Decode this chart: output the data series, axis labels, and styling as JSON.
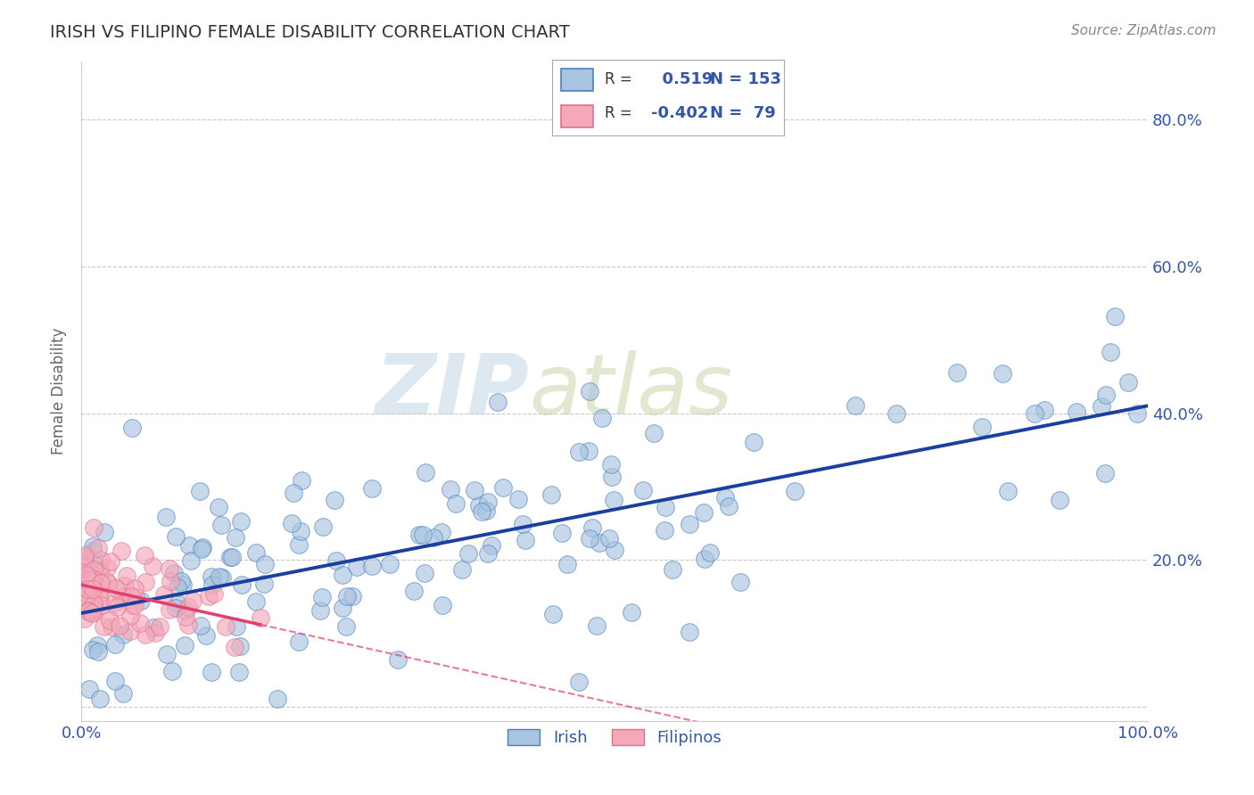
{
  "title": "IRISH VS FILIPINO FEMALE DISABILITY CORRELATION CHART",
  "source_text": "Source: ZipAtlas.com",
  "ylabel": "Female Disability",
  "xlim": [
    0.0,
    1.0
  ],
  "ylim": [
    -0.02,
    0.88
  ],
  "xticks": [
    0.0,
    0.2,
    0.4,
    0.6,
    0.8,
    1.0
  ],
  "xtick_labels": [
    "0.0%",
    "",
    "",
    "",
    "",
    "100.0%"
  ],
  "yticks": [
    0.0,
    0.2,
    0.4,
    0.6,
    0.8
  ],
  "ytick_labels_right": [
    "",
    "20.0%",
    "40.0%",
    "60.0%",
    "80.0%"
  ],
  "irish_R": 0.519,
  "irish_N": 153,
  "filipino_R": -0.402,
  "filipino_N": 79,
  "irish_color": "#a8c4e0",
  "irish_edge_color": "#4a80c0",
  "irish_line_color": "#1a3fa0",
  "filipino_color": "#f4a8b8",
  "filipino_edge_color": "#e07090",
  "filipino_line_color": "#e04070",
  "title_color": "#333333",
  "axis_label_color": "#3355aa",
  "watermark_color": "#dde8f0",
  "background_color": "#ffffff",
  "grid_color": "#c8c8c8",
  "legend_R_color": "#3355aa",
  "source_color": "#888888"
}
